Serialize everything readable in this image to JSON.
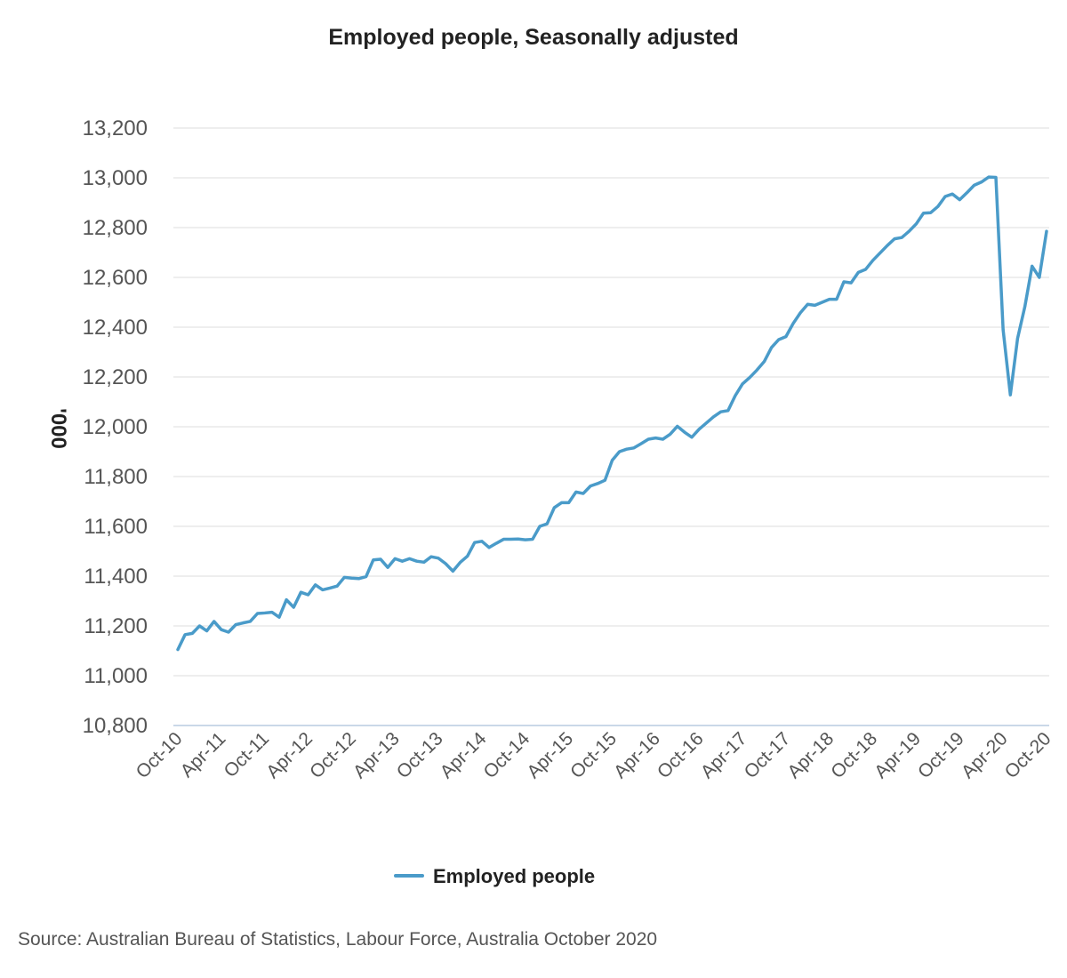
{
  "chart_data": {
    "type": "line",
    "title": "Employed people, Seasonally adjusted",
    "ylabel": "'000",
    "xlabel": "",
    "ylim": [
      10800,
      13200
    ],
    "yticks": [
      10800,
      11000,
      11200,
      11400,
      11600,
      11800,
      12000,
      12200,
      12400,
      12600,
      12800,
      13000,
      13200
    ],
    "ytick_labels": [
      "10,800",
      "11,000",
      "11,200",
      "11,400",
      "11,600",
      "11,800",
      "12,000",
      "12,200",
      "12,400",
      "12,600",
      "12,800",
      "13,000",
      "13,200"
    ],
    "xtick_labels": [
      "Oct-10",
      "Apr-11",
      "Oct-11",
      "Apr-12",
      "Oct-12",
      "Apr-13",
      "Oct-13",
      "Apr-14",
      "Oct-14",
      "Apr-15",
      "Oct-15",
      "Apr-16",
      "Oct-16",
      "Apr-17",
      "Oct-17",
      "Apr-18",
      "Oct-18",
      "Apr-19",
      "Oct-19",
      "Apr-20",
      "Oct-20"
    ],
    "grid": true,
    "legend_position": "bottom",
    "color": "#4a9bc9",
    "series": [
      {
        "name": "Employed people",
        "values": [
          11105,
          11165,
          11170,
          11200,
          11180,
          11218,
          11185,
          11175,
          11205,
          11212,
          11218,
          11250,
          11252,
          11255,
          11235,
          11305,
          11275,
          11335,
          11325,
          11365,
          11345,
          11352,
          11360,
          11395,
          11392,
          11390,
          11398,
          11465,
          11468,
          11435,
          11470,
          11460,
          11470,
          11460,
          11456,
          11478,
          11472,
          11450,
          11420,
          11455,
          11480,
          11535,
          11540,
          11515,
          11532,
          11548,
          11548,
          11549,
          11546,
          11548,
          11600,
          11610,
          11675,
          11695,
          11695,
          11738,
          11732,
          11762,
          11772,
          11785,
          11865,
          11900,
          11910,
          11915,
          11932,
          11950,
          11955,
          11950,
          11970,
          12002,
          11978,
          11958,
          11990,
          12015,
          12040,
          12060,
          12065,
          12125,
          12172,
          12198,
          12228,
          12262,
          12318,
          12350,
          12362,
          12415,
          12458,
          12492,
          12488,
          12500,
          12512,
          12512,
          12582,
          12578,
          12620,
          12632,
          12668,
          12698,
          12728,
          12755,
          12760,
          12785,
          12815,
          12858,
          12860,
          12885,
          12925,
          12935,
          12912,
          12940,
          12970,
          12983,
          13003,
          13002,
          12390,
          12128,
          12355,
          12482,
          12645,
          12600,
          12785
        ]
      }
    ],
    "source": "Source: Australian Bureau of Statistics, Labour Force, Australia October 2020"
  }
}
